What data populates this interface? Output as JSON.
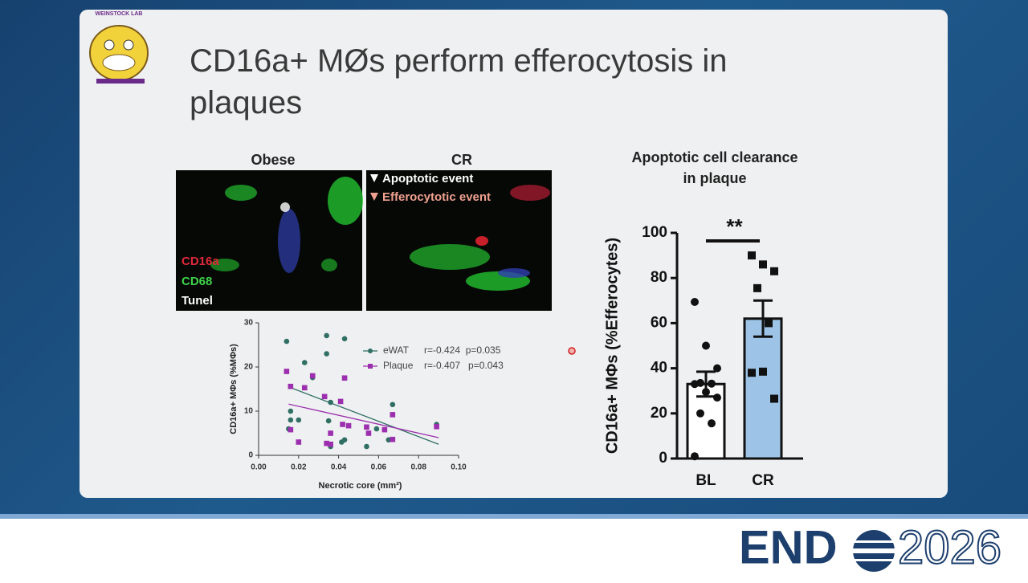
{
  "slide": {
    "lab_logo": "WEINSTOCK LAB",
    "title": "CD16a+ MØs perform efferocytosis in plaques"
  },
  "micrographs": {
    "panels": [
      "Obese",
      "CR"
    ],
    "stain_labels": [
      "CD16a",
      "CD68",
      "Tunel"
    ],
    "legend": [
      "Apoptotic event",
      "Efferocytotic event"
    ]
  },
  "chart_data": [
    {
      "type": "scatter",
      "x_label": "Necrotic core (mm²)",
      "y_label": "CD16a+ MΦs (%MΦs)",
      "xlim": [
        0,
        0.1
      ],
      "xticks": [
        {
          "value": 0,
          "label": "0.00"
        },
        {
          "value": 0.02,
          "label": "0.02"
        },
        {
          "value": 0.04,
          "label": "0.04"
        },
        {
          "value": 0.06,
          "label": "0.06"
        },
        {
          "value": 0.08,
          "label": "0.08"
        },
        {
          "value": 0.1,
          "label": "0.10"
        }
      ],
      "ylim": [
        0,
        30
      ],
      "yticks": [
        0,
        10,
        20,
        30
      ],
      "series": [
        {
          "name": "eWAT",
          "stats": "r=-0.424  p=0.035",
          "color": "#2f6f64",
          "marker": "circle",
          "x": [
            0.014,
            0.016,
            0.016,
            0.02,
            0.023,
            0.027,
            0.034,
            0.034,
            0.036,
            0.035,
            0.043,
            0.0415,
            0.043,
            0.036,
            0.054,
            0.059,
            0.067,
            0.065,
            0.089,
            0.015
          ],
          "values": [
            25.8,
            10,
            8,
            8,
            21,
            17.6,
            27.1,
            23,
            12,
            7.8,
            26.4,
            3,
            3.5,
            2,
            2,
            6,
            11.5,
            3.5,
            7,
            6
          ],
          "trendline": {
            "x": [
              0.015,
              0.09
            ],
            "y": [
              15.5,
              2.5
            ]
          }
        },
        {
          "name": "Plaque",
          "stats": "r=-0.407   p=0.043",
          "color": "#9b2fae",
          "marker": "square",
          "x": [
            0.014,
            0.016,
            0.023,
            0.02,
            0.033,
            0.034,
            0.036,
            0.041,
            0.042,
            0.045,
            0.043,
            0.027,
            0.054,
            0.055,
            0.063,
            0.067,
            0.089,
            0.016,
            0.036,
            0.067
          ],
          "values": [
            19,
            15.6,
            15.3,
            3,
            13.3,
            2.7,
            5,
            12.2,
            7,
            6.7,
            17.5,
            18,
            6.4,
            5,
            5.8,
            9.2,
            6.5,
            5.8,
            2.5,
            3.6
          ],
          "trendline": {
            "x": [
              0.015,
              0.09
            ],
            "y": [
              11.6,
              4
            ]
          }
        }
      ]
    },
    {
      "type": "bar",
      "title": "Apoptotic cell clearance in plaque",
      "y_label": "CD16a+ MΦs (%Efferocytes)",
      "categories": [
        "BL",
        "CR"
      ],
      "values": [
        33,
        62
      ],
      "errors": [
        5.5,
        8
      ],
      "colors": [
        "#ffffff",
        "#9dc3e6"
      ],
      "markers": [
        "circle",
        "square"
      ],
      "points": [
        [
          69.4,
          50,
          40,
          33.5,
          33.2,
          33,
          29.5,
          27,
          20,
          15.6,
          1
        ],
        [
          90,
          86,
          83,
          75.5,
          60,
          38,
          38.5,
          26.5
        ]
      ],
      "significance": "**",
      "ylim": [
        0,
        100
      ],
      "yticks": [
        0,
        20,
        40,
        60,
        80,
        100
      ]
    }
  ],
  "footer": {
    "brand": "END",
    "year": "2026"
  }
}
